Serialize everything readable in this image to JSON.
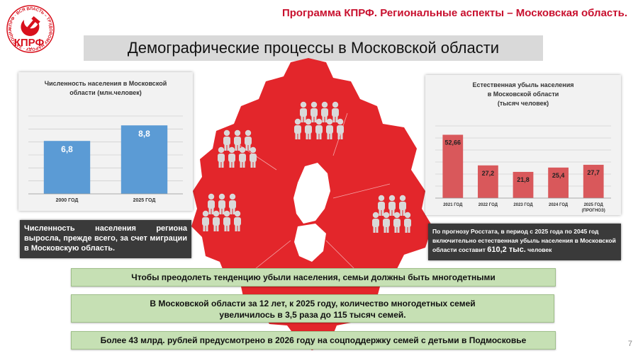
{
  "header": {
    "title": "Программа КПРФ. Региональные аспекты –  Московская область.",
    "logo_text": "КПРФ",
    "logo_ring_text": "КПРФ · ВСЯ ВЛАСТЬ – ТРУДОВОМУ НАРОДУ · ЗА СОЦИАЛИЗМ ·"
  },
  "subtitle": "Демографические процессы в Московской области",
  "colors": {
    "accent": "#c8102e",
    "map": "#e3262b",
    "bar_blue": "#5b9bd5",
    "bar_red": "#d9585b",
    "note_bg": "#3a3a3a",
    "green_box": "#c6e0b4"
  },
  "chart_data": [
    {
      "type": "bar",
      "title": "Численность населения в Московской\nобласти (млн.человек)",
      "categories": [
        "2000 ГОД",
        "2025 ГОД"
      ],
      "values": [
        6.8,
        8.8
      ],
      "value_labels": [
        "6,8",
        "8,8"
      ],
      "ylim": [
        0,
        10
      ],
      "grid": true,
      "color": "#5b9bd5"
    },
    {
      "type": "bar",
      "title": "Естественная убыль населения\nв Московской области\n(тысяч человек)",
      "categories": [
        "2021 ГОД",
        "2022 ГОД",
        "2023  ГОД",
        "2024 ГОД",
        "2025 ГОД"
      ],
      "category_notes": [
        "",
        "",
        "",
        "",
        "(ПРОГНОЗ)"
      ],
      "values": [
        52.66,
        27.2,
        21.8,
        25.4,
        27.7
      ],
      "value_labels": [
        "52,66",
        "27,2",
        "21,8",
        "25,4",
        "27,7"
      ],
      "ylim": [
        0,
        60
      ],
      "grid": true,
      "color": "#d9585b"
    }
  ],
  "notes": {
    "left": "Численность населения региона выросла, прежде всего, за счет миграции в Московскую область.",
    "right_part1": "По прогнозу Росстата, в период с 2025 года по 2045 год включительно естественная убыль населения в Московской области составит ",
    "right_big": "610,2 тыс.",
    "right_part2": " человек"
  },
  "boxes": {
    "b1": "Чтобы преодолеть тенденцию убыли населения, семьи должны быть многодетными",
    "b2": "В Московской области за 12 лет, к 2025 году, количество многодетных семей увеличилось в 3,5 раза до 115 тысяч семей.",
    "b3": "Более 43 млрд. рублей предусмотрено в 2026 году на соцподдержку семей с детьми в Подмосковье"
  },
  "page_number": "7",
  "icons": {
    "people": "people-group-icon",
    "map": "region-map-icon",
    "logo": "hammer-sickle-icon"
  }
}
